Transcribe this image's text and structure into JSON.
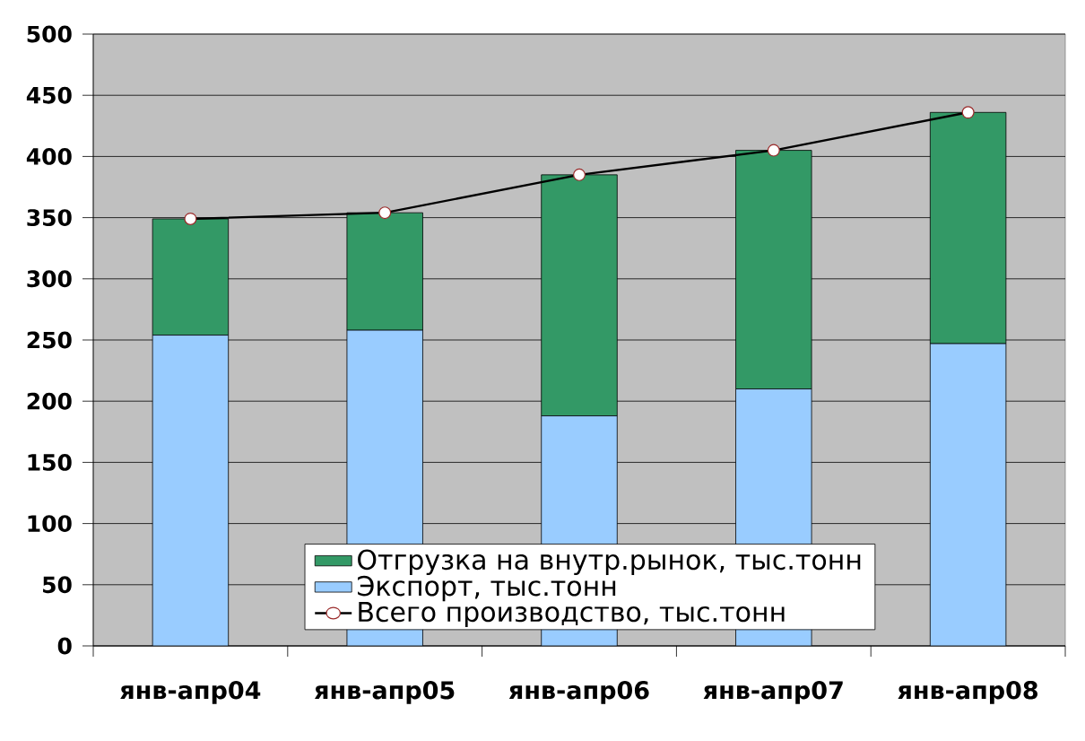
{
  "chart_data": {
    "type": "bar",
    "stacked": true,
    "categories": [
      "янв-апр04",
      "янв-апр05",
      "янв-апр06",
      "янв-апр07",
      "янв-апр08"
    ],
    "series": [
      {
        "name": "Экспорт, тыс.тонн",
        "color": "#99ccff",
        "values": [
          254,
          258,
          188,
          210,
          247
        ]
      },
      {
        "name": "Отгрузка на внутр.рынок, тыс.тонн",
        "color": "#339966",
        "values": [
          95,
          96,
          197,
          195,
          189
        ]
      },
      {
        "name": "Всего производство, тыс.тонн",
        "type": "line",
        "color": "#000000",
        "values": [
          349,
          354,
          385,
          405,
          436
        ]
      }
    ],
    "ylim": [
      0,
      500
    ],
    "yticks": [
      0,
      50,
      100,
      150,
      200,
      250,
      300,
      350,
      400,
      450,
      500
    ],
    "grid": "y",
    "legend": "bottom",
    "marker": "circle"
  }
}
